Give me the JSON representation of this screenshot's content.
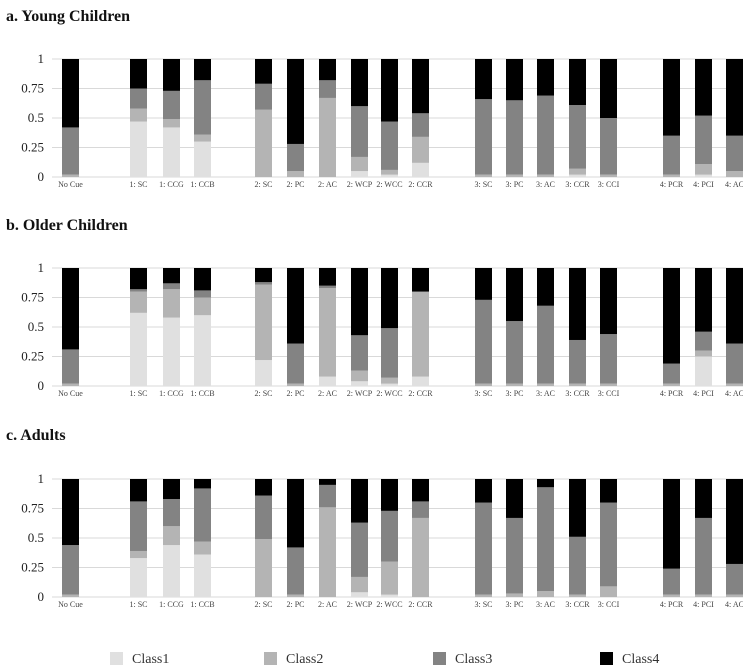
{
  "legend": [
    "Class1",
    "Class2",
    "Class3",
    "Class4"
  ],
  "colors": {
    "Class1": "#e0e0e0",
    "Class2": "#b4b4b4",
    "Class3": "#838383",
    "Class4": "#000000",
    "grid": "#d9d9d9"
  },
  "chart_data": [
    {
      "type": "bar",
      "stacked": true,
      "title": "a. Young Children",
      "ylim": [
        0,
        1
      ],
      "yticks": [
        "0",
        "0.25",
        "0.5",
        "0.75",
        "1"
      ],
      "grid": true,
      "categories": [
        "No Cue",
        "1: SC",
        "1: CCG",
        "1: CCB",
        "2: SC",
        "2: PC",
        "2: AC",
        "2: WCP",
        "2: WCC",
        "2: CCR",
        "3: SC",
        "3: PC",
        "3: AC",
        "3: CCR",
        "3: CCI",
        "4: PCR",
        "4: PCI",
        "4: AC"
      ],
      "series": [
        {
          "name": "Class1",
          "values": [
            0.0,
            0.47,
            0.42,
            0.3,
            0.0,
            0.0,
            0.0,
            0.05,
            0.02,
            0.12,
            0.0,
            0.0,
            0.0,
            0.02,
            0.0,
            0.0,
            0.02,
            0.0
          ]
        },
        {
          "name": "Class2",
          "values": [
            0.02,
            0.11,
            0.07,
            0.06,
            0.57,
            0.05,
            0.67,
            0.12,
            0.04,
            0.22,
            0.02,
            0.02,
            0.02,
            0.05,
            0.02,
            0.02,
            0.09,
            0.05
          ]
        },
        {
          "name": "Class3",
          "values": [
            0.4,
            0.17,
            0.24,
            0.46,
            0.22,
            0.23,
            0.15,
            0.43,
            0.41,
            0.2,
            0.64,
            0.63,
            0.67,
            0.54,
            0.48,
            0.33,
            0.41,
            0.3
          ]
        },
        {
          "name": "Class4",
          "values": [
            0.58,
            0.25,
            0.27,
            0.18,
            0.21,
            0.72,
            0.18,
            0.4,
            0.53,
            0.46,
            0.34,
            0.35,
            0.31,
            0.39,
            0.5,
            0.65,
            0.48,
            0.65
          ]
        }
      ]
    },
    {
      "type": "bar",
      "stacked": true,
      "title": "b. Older Children",
      "ylim": [
        0,
        1
      ],
      "yticks": [
        "0",
        "0.25",
        "0.5",
        "0.75",
        "1"
      ],
      "grid": true,
      "categories": [
        "No Cue",
        "1: SC",
        "1: CCG",
        "1: CCB",
        "2: SC",
        "2: PC",
        "2: AC",
        "2: WCP",
        "2: WCC",
        "2: CCR",
        "3: SC",
        "3: PC",
        "3: AC",
        "3: CCR",
        "3: CCI",
        "4: PCR",
        "4: PCI",
        "4: AC"
      ],
      "series": [
        {
          "name": "Class1",
          "values": [
            0.0,
            0.62,
            0.58,
            0.6,
            0.22,
            0.0,
            0.08,
            0.04,
            0.02,
            0.08,
            0.0,
            0.0,
            0.0,
            0.0,
            0.0,
            0.0,
            0.25,
            0.0
          ]
        },
        {
          "name": "Class2",
          "values": [
            0.02,
            0.18,
            0.24,
            0.15,
            0.64,
            0.02,
            0.75,
            0.09,
            0.05,
            0.72,
            0.02,
            0.02,
            0.02,
            0.02,
            0.02,
            0.02,
            0.05,
            0.02
          ]
        },
        {
          "name": "Class3",
          "values": [
            0.29,
            0.02,
            0.05,
            0.06,
            0.02,
            0.34,
            0.02,
            0.3,
            0.42,
            0.0,
            0.71,
            0.53,
            0.66,
            0.37,
            0.42,
            0.17,
            0.16,
            0.34
          ]
        },
        {
          "name": "Class4",
          "values": [
            0.69,
            0.18,
            0.13,
            0.19,
            0.12,
            0.64,
            0.15,
            0.57,
            0.51,
            0.2,
            0.27,
            0.45,
            0.32,
            0.61,
            0.56,
            0.81,
            0.54,
            0.64
          ]
        }
      ]
    },
    {
      "type": "bar",
      "stacked": true,
      "title": "c. Adults",
      "ylim": [
        0,
        1
      ],
      "yticks": [
        "0",
        "0.25",
        "0.5",
        "0.75",
        "1"
      ],
      "grid": true,
      "categories": [
        "No Cue",
        "1: SC",
        "1: CCG",
        "1: CCB",
        "2: SC",
        "2: PC",
        "2: AC",
        "2: WCP",
        "2: WCC",
        "2: CCR",
        "3: SC",
        "3: PC",
        "3: AC",
        "3: CCR",
        "3: CCI",
        "4: PCR",
        "4: PCI",
        "4: AC"
      ],
      "series": [
        {
          "name": "Class1",
          "values": [
            0.0,
            0.33,
            0.44,
            0.36,
            0.0,
            0.0,
            0.0,
            0.04,
            0.02,
            0.0,
            0.0,
            0.0,
            0.0,
            0.0,
            0.0,
            0.0,
            0.0,
            0.0
          ]
        },
        {
          "name": "Class2",
          "values": [
            0.02,
            0.06,
            0.16,
            0.11,
            0.49,
            0.02,
            0.76,
            0.13,
            0.28,
            0.67,
            0.02,
            0.03,
            0.05,
            0.02,
            0.09,
            0.02,
            0.02,
            0.02
          ]
        },
        {
          "name": "Class3",
          "values": [
            0.42,
            0.42,
            0.23,
            0.45,
            0.37,
            0.4,
            0.19,
            0.46,
            0.43,
            0.14,
            0.78,
            0.64,
            0.88,
            0.49,
            0.71,
            0.22,
            0.65,
            0.26
          ]
        },
        {
          "name": "Class4",
          "values": [
            0.56,
            0.19,
            0.17,
            0.08,
            0.14,
            0.58,
            0.05,
            0.37,
            0.27,
            0.19,
            0.2,
            0.33,
            0.07,
            0.49,
            0.2,
            0.76,
            0.33,
            0.72
          ]
        }
      ]
    }
  ]
}
